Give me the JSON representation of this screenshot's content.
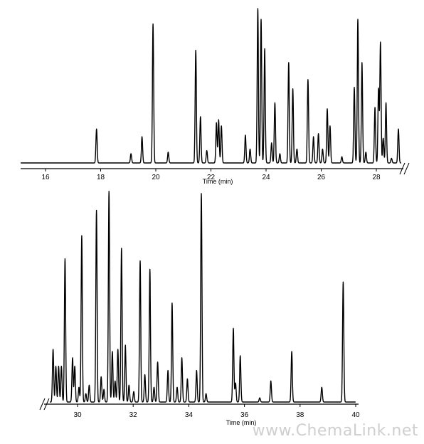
{
  "chart_data": [
    {
      "type": "line",
      "xlabel": "Time (min)",
      "ylabel": "",
      "xlim": [
        15.0,
        28.9
      ],
      "x_ticks": [
        16,
        18,
        20,
        22,
        24,
        26,
        28
      ],
      "axis_break_right": true,
      "peaks": [
        {
          "x": 17.85,
          "h": 0.22
        },
        {
          "x": 19.1,
          "h": 0.06
        },
        {
          "x": 19.5,
          "h": 0.17
        },
        {
          "x": 19.9,
          "h": 0.9
        },
        {
          "x": 20.45,
          "h": 0.07
        },
        {
          "x": 21.45,
          "h": 0.73
        },
        {
          "x": 21.62,
          "h": 0.3
        },
        {
          "x": 21.85,
          "h": 0.08
        },
        {
          "x": 22.2,
          "h": 0.26
        },
        {
          "x": 22.28,
          "h": 0.28
        },
        {
          "x": 22.38,
          "h": 0.24
        },
        {
          "x": 23.25,
          "h": 0.18
        },
        {
          "x": 23.42,
          "h": 0.09
        },
        {
          "x": 23.7,
          "h": 1.0
        },
        {
          "x": 23.82,
          "h": 0.93
        },
        {
          "x": 23.95,
          "h": 0.74
        },
        {
          "x": 24.2,
          "h": 0.13
        },
        {
          "x": 24.32,
          "h": 0.39
        },
        {
          "x": 24.5,
          "h": 0.06
        },
        {
          "x": 24.82,
          "h": 0.65
        },
        {
          "x": 24.97,
          "h": 0.48
        },
        {
          "x": 25.12,
          "h": 0.09
        },
        {
          "x": 25.52,
          "h": 0.54
        },
        {
          "x": 25.72,
          "h": 0.17
        },
        {
          "x": 25.9,
          "h": 0.19
        },
        {
          "x": 26.05,
          "h": 0.09
        },
        {
          "x": 26.22,
          "h": 0.35
        },
        {
          "x": 26.32,
          "h": 0.24
        },
        {
          "x": 26.75,
          "h": 0.04
        },
        {
          "x": 27.2,
          "h": 0.49
        },
        {
          "x": 27.33,
          "h": 0.93
        },
        {
          "x": 27.48,
          "h": 0.65
        },
        {
          "x": 27.62,
          "h": 0.07
        },
        {
          "x": 27.95,
          "h": 0.36
        },
        {
          "x": 28.08,
          "h": 0.48
        },
        {
          "x": 28.15,
          "h": 0.78
        },
        {
          "x": 28.25,
          "h": 0.16
        },
        {
          "x": 28.35,
          "h": 0.39
        },
        {
          "x": 28.55,
          "h": 0.03
        },
        {
          "x": 28.8,
          "h": 0.22
        }
      ]
    },
    {
      "type": "line",
      "xlabel": "Time (min)",
      "ylabel": "",
      "xlim": [
        29.0,
        40.0
      ],
      "x_ticks": [
        30,
        32,
        34,
        36,
        38,
        40
      ],
      "axis_break_left": true,
      "peaks": [
        {
          "x": 29.12,
          "h": 0.25
        },
        {
          "x": 29.22,
          "h": 0.17
        },
        {
          "x": 29.32,
          "h": 0.17
        },
        {
          "x": 29.42,
          "h": 0.17
        },
        {
          "x": 29.55,
          "h": 0.68
        },
        {
          "x": 29.82,
          "h": 0.21
        },
        {
          "x": 29.9,
          "h": 0.17
        },
        {
          "x": 30.05,
          "h": 0.07
        },
        {
          "x": 30.15,
          "h": 0.79
        },
        {
          "x": 30.3,
          "h": 0.04
        },
        {
          "x": 30.42,
          "h": 0.08
        },
        {
          "x": 30.68,
          "h": 0.91
        },
        {
          "x": 30.85,
          "h": 0.12
        },
        {
          "x": 30.95,
          "h": 0.06
        },
        {
          "x": 31.13,
          "h": 1.0
        },
        {
          "x": 31.25,
          "h": 0.24
        },
        {
          "x": 31.35,
          "h": 0.1
        },
        {
          "x": 31.45,
          "h": 0.25
        },
        {
          "x": 31.58,
          "h": 0.73
        },
        {
          "x": 31.72,
          "h": 0.27
        },
        {
          "x": 31.85,
          "h": 0.08
        },
        {
          "x": 32.02,
          "h": 0.05
        },
        {
          "x": 32.25,
          "h": 0.67
        },
        {
          "x": 32.42,
          "h": 0.13
        },
        {
          "x": 32.6,
          "h": 0.63
        },
        {
          "x": 32.75,
          "h": 0.07
        },
        {
          "x": 32.88,
          "h": 0.19
        },
        {
          "x": 33.25,
          "h": 0.15
        },
        {
          "x": 33.4,
          "h": 0.47
        },
        {
          "x": 33.58,
          "h": 0.07
        },
        {
          "x": 33.75,
          "h": 0.21
        },
        {
          "x": 33.95,
          "h": 0.11
        },
        {
          "x": 34.28,
          "h": 0.15
        },
        {
          "x": 34.45,
          "h": 0.99
        },
        {
          "x": 34.62,
          "h": 0.04
        },
        {
          "x": 35.6,
          "h": 0.35
        },
        {
          "x": 35.68,
          "h": 0.09
        },
        {
          "x": 35.85,
          "h": 0.22
        },
        {
          "x": 36.55,
          "h": 0.02
        },
        {
          "x": 36.95,
          "h": 0.1
        },
        {
          "x": 37.7,
          "h": 0.24
        },
        {
          "x": 38.78,
          "h": 0.07
        },
        {
          "x": 39.55,
          "h": 0.57
        }
      ]
    }
  ],
  "watermark": "www.ChemaLink.net"
}
